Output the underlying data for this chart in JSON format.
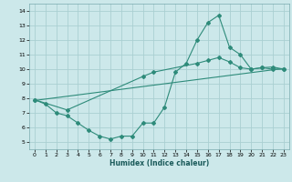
{
  "xlabel": "Humidex (Indice chaleur)",
  "bg_color": "#cce8ea",
  "grid_color": "#aacfd2",
  "line_color": "#2e8b7a",
  "xlim": [
    -0.5,
    23.5
  ],
  "ylim": [
    4.5,
    14.5
  ],
  "xticks": [
    0,
    1,
    2,
    3,
    4,
    5,
    6,
    7,
    8,
    9,
    10,
    11,
    12,
    13,
    14,
    15,
    16,
    17,
    18,
    19,
    20,
    21,
    22,
    23
  ],
  "yticks": [
    5,
    6,
    7,
    8,
    9,
    10,
    11,
    12,
    13,
    14
  ],
  "line1_x": [
    0,
    1,
    2,
    3,
    4,
    5,
    6,
    7,
    8,
    9,
    10,
    11,
    12,
    13,
    14,
    15,
    16,
    17,
    18,
    19,
    20,
    21,
    22,
    23
  ],
  "line1_y": [
    7.9,
    7.6,
    7.0,
    6.8,
    6.3,
    5.8,
    5.4,
    5.2,
    5.4,
    5.4,
    6.3,
    6.3,
    7.4,
    9.8,
    10.4,
    12.0,
    13.2,
    13.7,
    11.5,
    11.0,
    10.0,
    10.1,
    10.0,
    10.0
  ],
  "line2_x": [
    0,
    3,
    10,
    11,
    15,
    16,
    17,
    18,
    19,
    20,
    21,
    22,
    23
  ],
  "line2_y": [
    7.9,
    7.2,
    9.5,
    9.8,
    10.4,
    10.6,
    10.8,
    10.5,
    10.1,
    10.0,
    10.1,
    10.15,
    10.0
  ],
  "line3_x": [
    0,
    23
  ],
  "line3_y": [
    7.85,
    10.05
  ]
}
